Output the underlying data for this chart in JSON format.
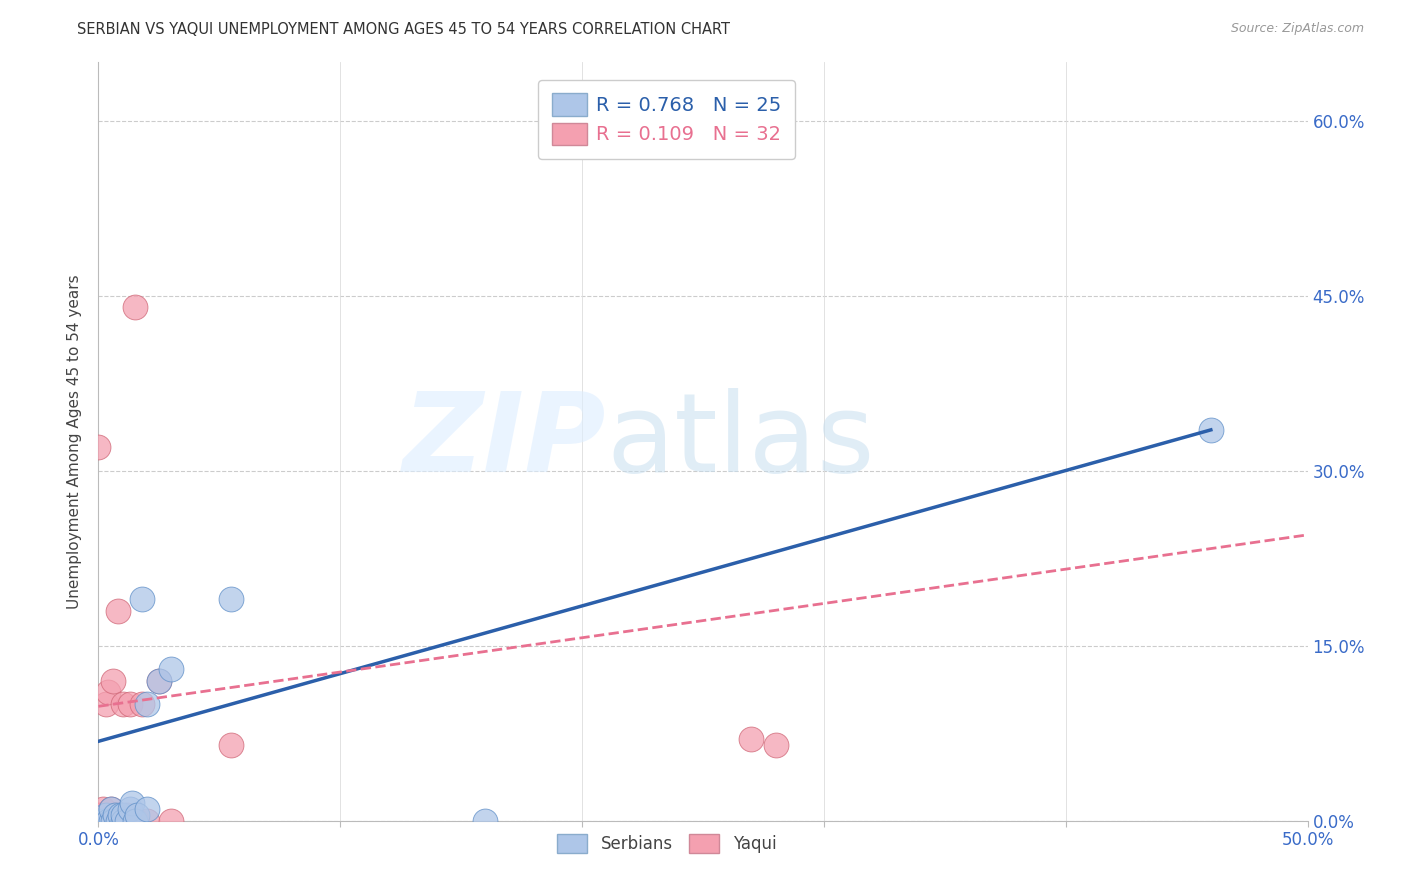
{
  "title": "SERBIAN VS YAQUI UNEMPLOYMENT AMONG AGES 45 TO 54 YEARS CORRELATION CHART",
  "source": "Source: ZipAtlas.com",
  "ylabel": "Unemployment Among Ages 45 to 54 years",
  "xlim": [
    0.0,
    0.5
  ],
  "ylim": [
    0.0,
    0.65
  ],
  "xticks": [
    0.0,
    0.1,
    0.2,
    0.3,
    0.4,
    0.5
  ],
  "xtick_labels_show": [
    "0.0%",
    "",
    "",
    "",
    "",
    "50.0%"
  ],
  "ytick_labels_right": [
    "0.0%",
    "15.0%",
    "30.0%",
    "45.0%",
    "60.0%"
  ],
  "yticks_right": [
    0.0,
    0.15,
    0.3,
    0.45,
    0.6
  ],
  "legend_serbian": "R = 0.768   N = 25",
  "legend_yaqui": "R = 0.109   N = 32",
  "serbian_color": "#aec6e8",
  "yaqui_color": "#f4a0b0",
  "serbian_line_color": "#2b5faa",
  "yaqui_line_color": "#e87090",
  "serbian_line_x": [
    0.0,
    0.46
  ],
  "serbian_line_y": [
    0.068,
    0.335
  ],
  "yaqui_line_x": [
    0.0,
    0.5
  ],
  "yaqui_line_y": [
    0.098,
    0.245
  ],
  "serbian_points_x": [
    0.0,
    0.002,
    0.003,
    0.004,
    0.005,
    0.005,
    0.006,
    0.007,
    0.008,
    0.009,
    0.01,
    0.01,
    0.012,
    0.013,
    0.014,
    0.015,
    0.016,
    0.018,
    0.02,
    0.02,
    0.025,
    0.03,
    0.055,
    0.16,
    0.46
  ],
  "serbian_points_y": [
    0.0,
    0.0,
    0.005,
    0.0,
    0.0,
    0.01,
    0.0,
    0.005,
    0.0,
    0.005,
    0.0,
    0.005,
    0.0,
    0.01,
    0.015,
    0.0,
    0.005,
    0.19,
    0.01,
    0.1,
    0.12,
    0.13,
    0.19,
    0.0,
    0.335
  ],
  "yaqui_points_x": [
    0.0,
    0.0,
    0.0,
    0.001,
    0.001,
    0.002,
    0.003,
    0.003,
    0.004,
    0.004,
    0.005,
    0.005,
    0.006,
    0.006,
    0.007,
    0.008,
    0.008,
    0.009,
    0.01,
    0.01,
    0.011,
    0.012,
    0.013,
    0.015,
    0.016,
    0.018,
    0.02,
    0.025,
    0.03,
    0.055,
    0.27,
    0.28
  ],
  "yaqui_points_y": [
    0.0,
    0.005,
    0.32,
    0.0,
    0.005,
    0.01,
    0.0,
    0.1,
    0.0,
    0.11,
    0.0,
    0.01,
    0.0,
    0.12,
    0.005,
    0.0,
    0.18,
    0.005,
    0.0,
    0.1,
    0.0,
    0.005,
    0.1,
    0.44,
    0.0,
    0.1,
    0.0,
    0.12,
    0.0,
    0.065,
    0.07,
    0.065
  ]
}
